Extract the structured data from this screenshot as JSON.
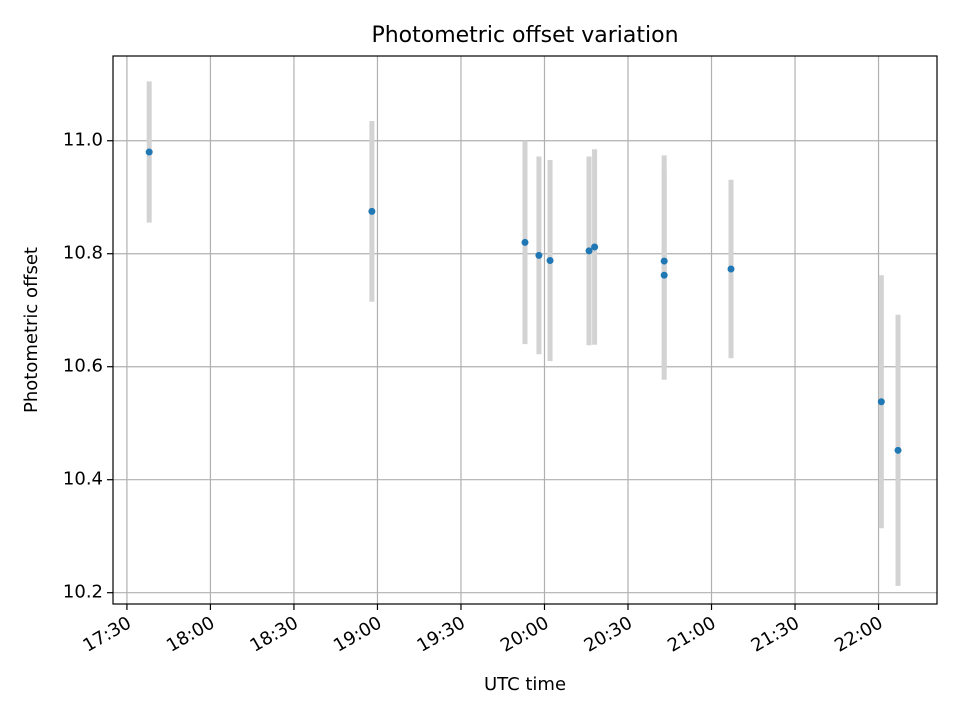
{
  "chart_data": {
    "type": "scatter",
    "title": "Photometric offset variation",
    "xlabel": "UTC time",
    "ylabel": "Photometric offset",
    "x_ticks": [
      "17:30",
      "18:00",
      "18:30",
      "19:00",
      "19:30",
      "20:00",
      "20:30",
      "21:00",
      "21:30",
      "22:00"
    ],
    "y_ticks": [
      "10.2",
      "10.4",
      "10.6",
      "10.8",
      "11.0"
    ],
    "xlim": [
      "17:25",
      "22:21"
    ],
    "ylim": [
      10.18,
      11.15
    ],
    "grid": true,
    "marker_color": "#1f77b4",
    "errorbar_color": "#d3d3d3",
    "series": [
      {
        "points": [
          {
            "x": "17:38",
            "y": 10.98,
            "err": 0.125
          },
          {
            "x": "18:58",
            "y": 10.875,
            "err": 0.16
          },
          {
            "x": "19:53",
            "y": 10.82,
            "err": 0.18
          },
          {
            "x": "19:58",
            "y": 10.797,
            "err": 0.175
          },
          {
            "x": "20:02",
            "y": 10.788,
            "err": 0.178
          },
          {
            "x": "20:16",
            "y": 10.805,
            "err": 0.167
          },
          {
            "x": "20:18",
            "y": 10.812,
            "err": 0.173
          },
          {
            "x": "20:43",
            "y": 10.787,
            "err": 0.187
          },
          {
            "x": "20:43",
            "y": 10.762,
            "err": 0.185
          },
          {
            "x": "21:07",
            "y": 10.773,
            "err": 0.158
          },
          {
            "x": "22:01",
            "y": 10.538,
            "err": 0.224
          },
          {
            "x": "22:07",
            "y": 10.452,
            "err": 0.24
          }
        ]
      }
    ]
  }
}
